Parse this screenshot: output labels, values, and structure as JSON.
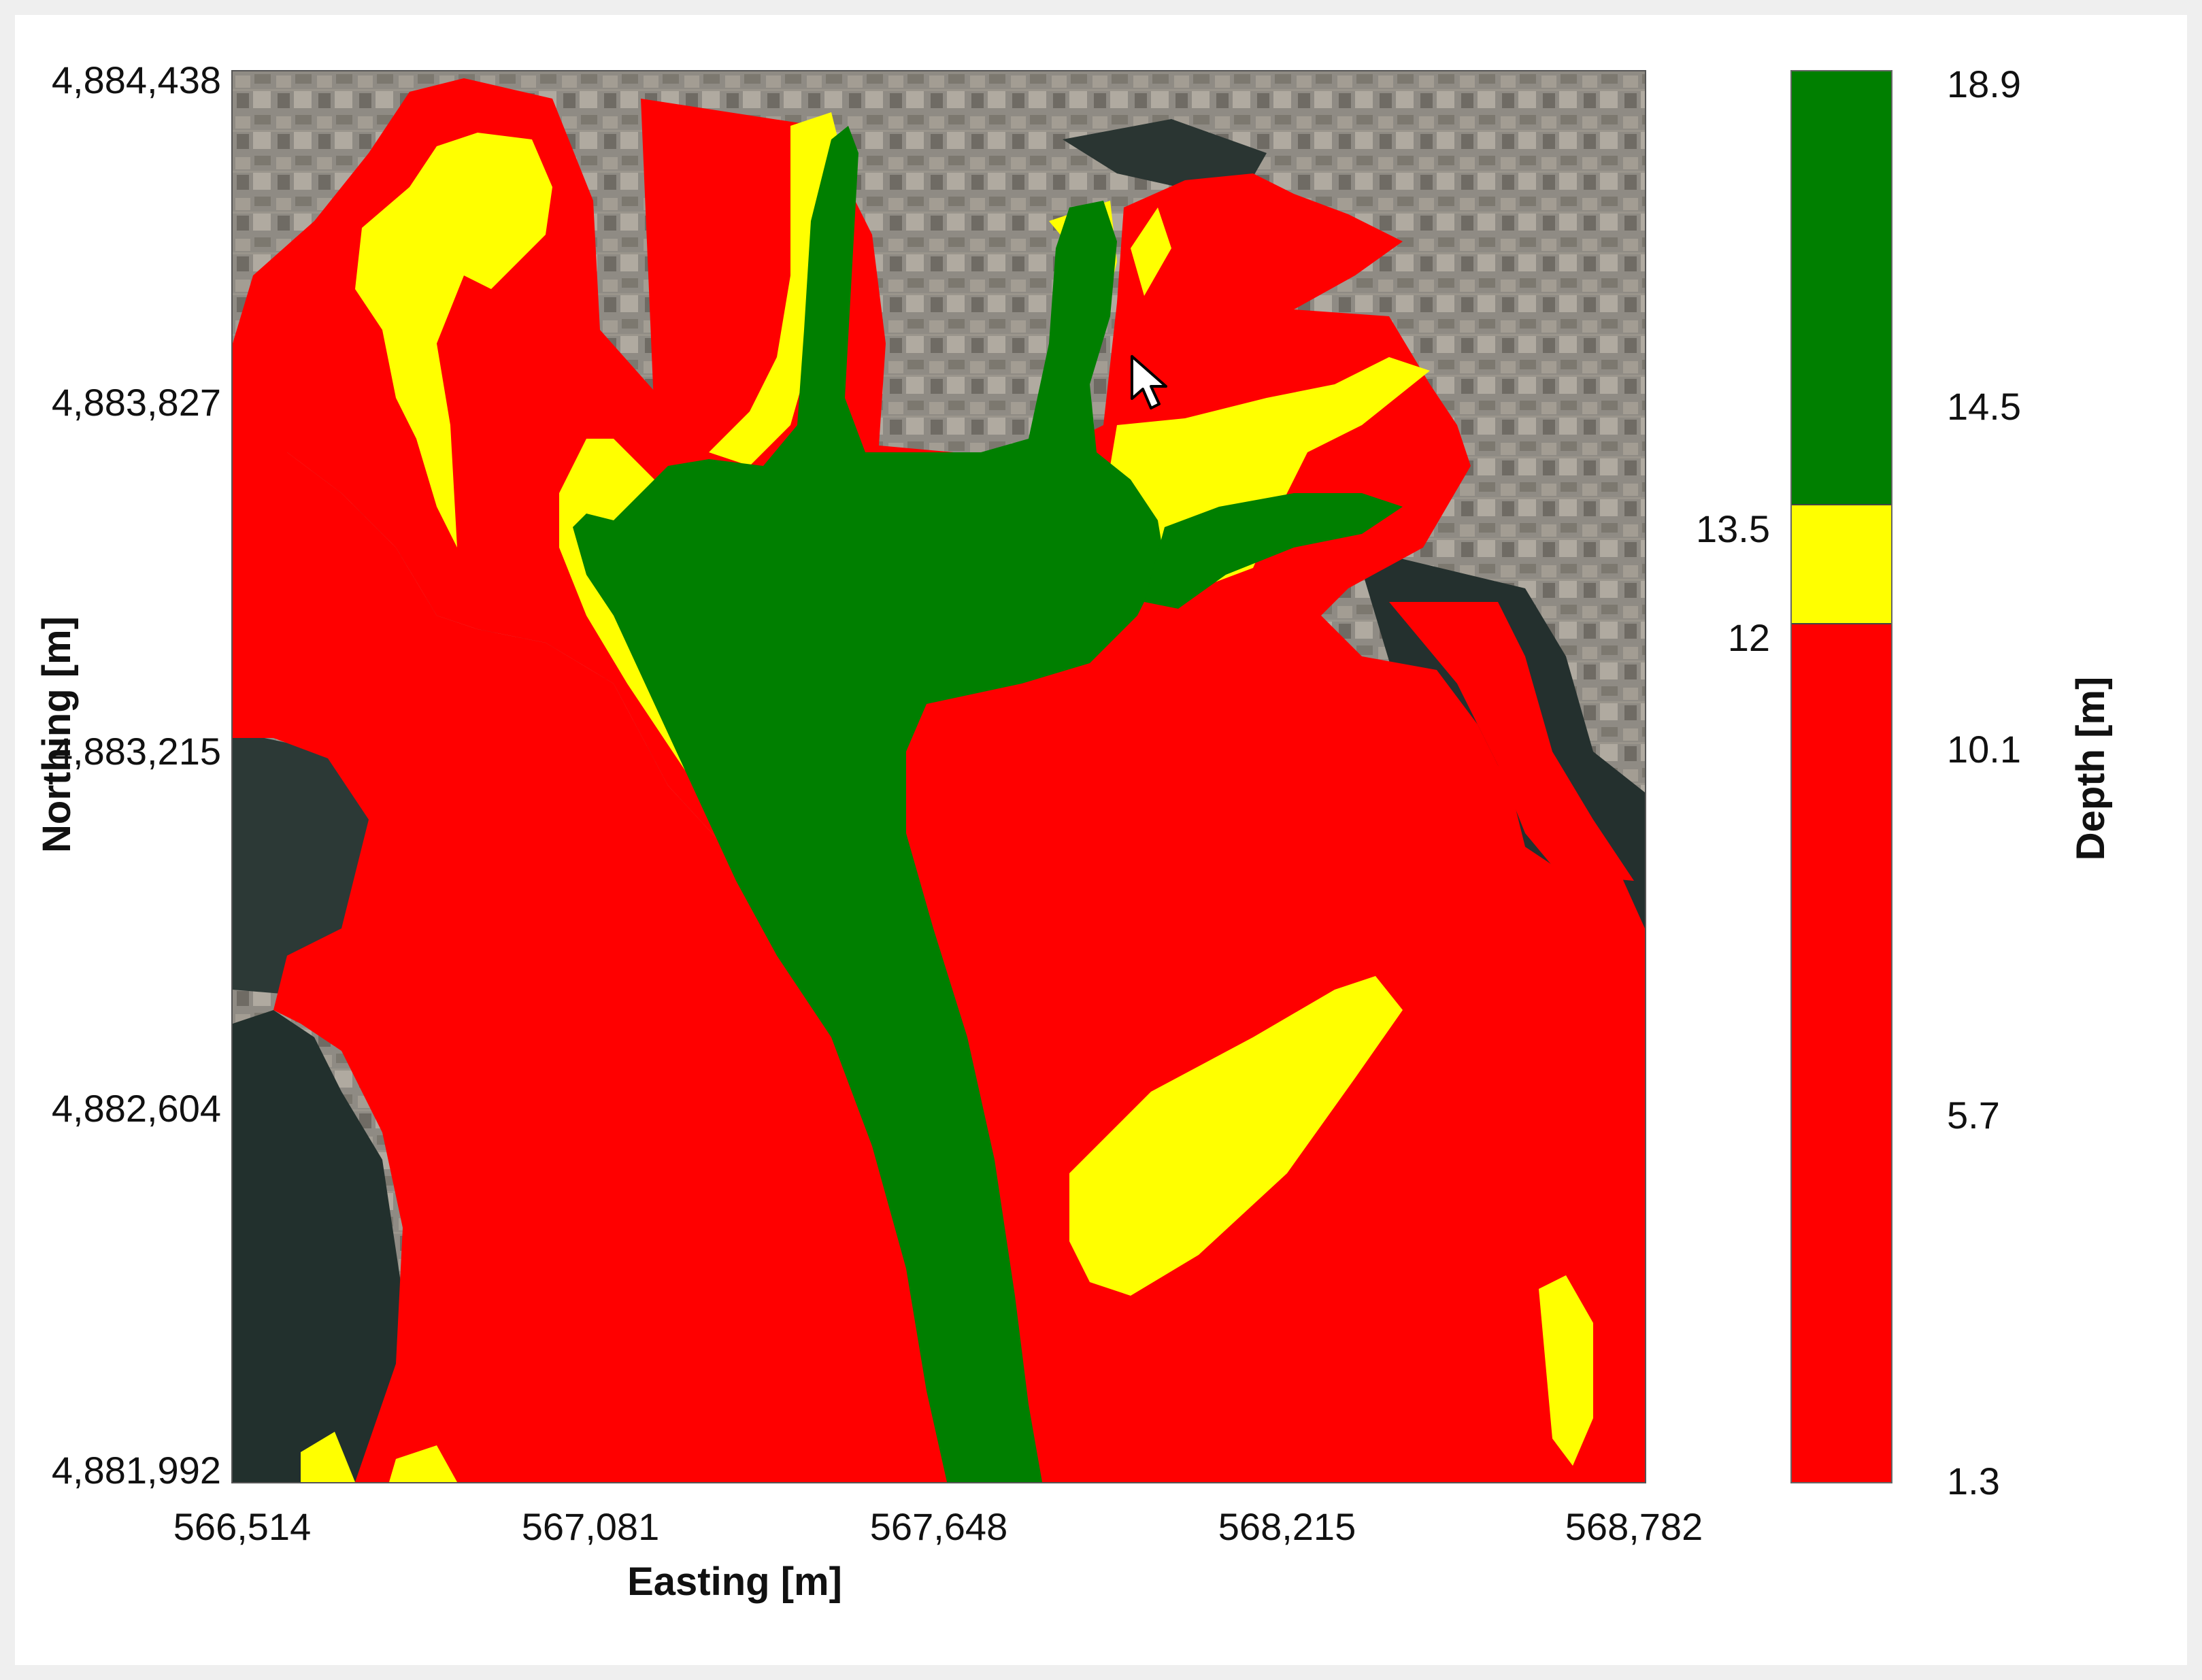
{
  "map": {
    "easting_ticks": [
      "566,514",
      "567,081",
      "567,648",
      "568,215",
      "568,782"
    ],
    "northing_ticks": [
      "4,884,438",
      "4,883,827",
      "4,883,215",
      "4,882,604",
      "4,881,992"
    ],
    "x_label": "Easting [m]",
    "y_label": "Northing [m]",
    "classes": [
      {
        "color": "#ff0000",
        "meaning": "shallow"
      },
      {
        "color": "#ffff00",
        "meaning": "intermediate"
      },
      {
        "color": "#007f00",
        "meaning": "deep"
      }
    ],
    "basemap": "satellite imagery of harbor"
  },
  "colorbar": {
    "label": "Depth [m]",
    "ticks": [
      "18.9",
      "14.5",
      "10.1",
      "5.7",
      "1.3"
    ],
    "tick_values": [
      18.9,
      14.5,
      10.1,
      5.7,
      1.3
    ],
    "thresholds": [
      "13.5",
      "12"
    ],
    "threshold_values": [
      13.5,
      12
    ],
    "range": [
      1.3,
      18.9
    ],
    "colors": {
      "deep": "#007f00",
      "mid": "#ffff00",
      "shallow": "#ff0000"
    }
  }
}
